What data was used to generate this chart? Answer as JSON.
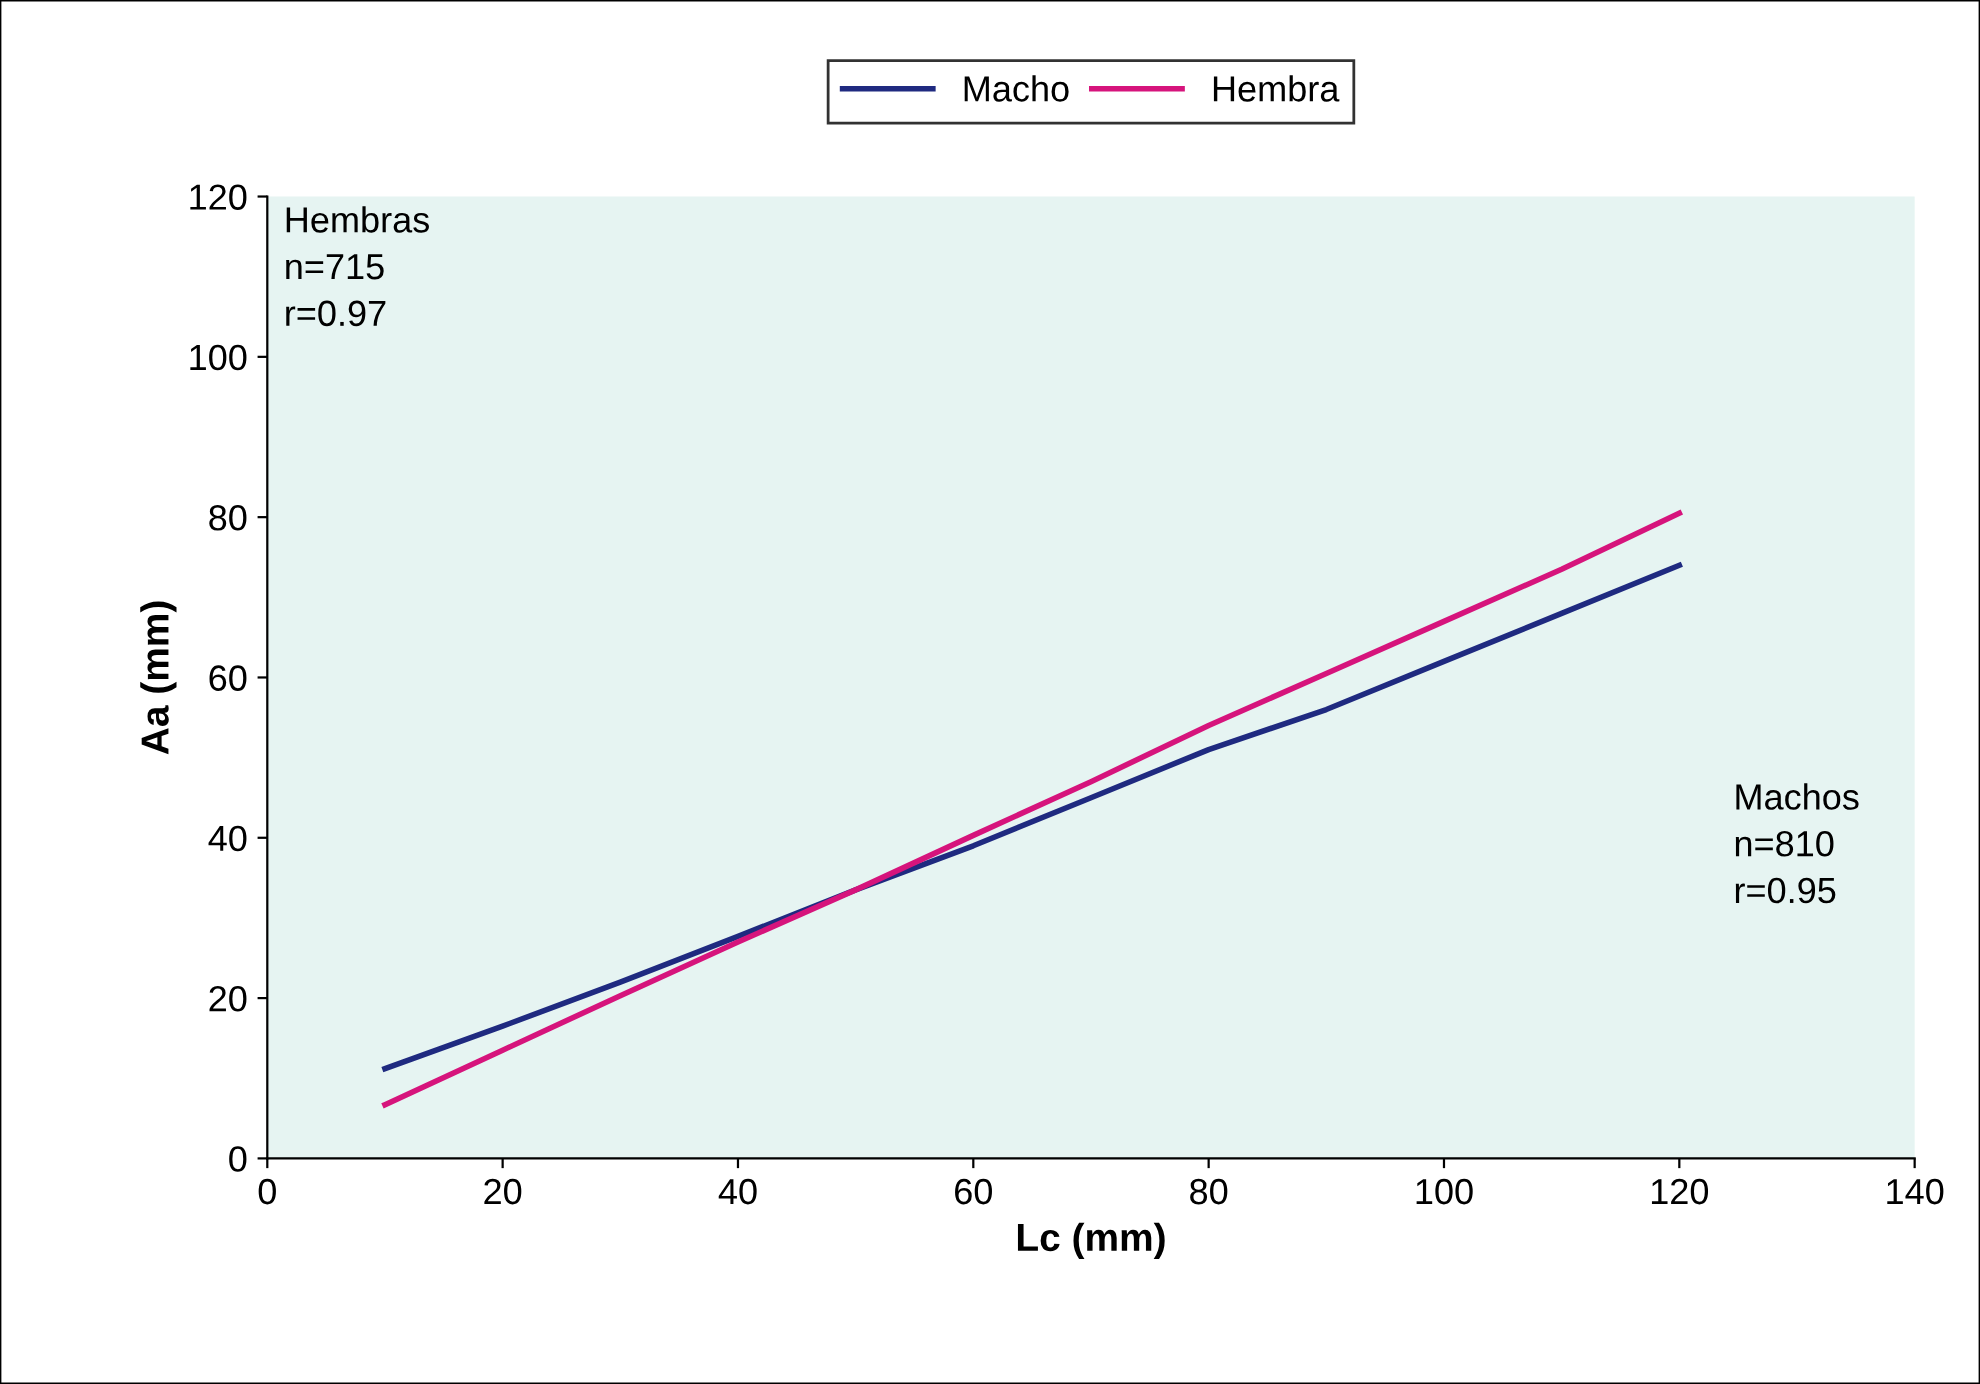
{
  "chart_data": {
    "type": "line",
    "xlabel": "Lc (mm)",
    "ylabel": "Aa (mm)",
    "xlim": [
      0,
      140
    ],
    "xticks": [
      0,
      20,
      40,
      60,
      80,
      100,
      120,
      140
    ],
    "ylim": [
      0,
      120
    ],
    "yticks": [
      0,
      20,
      40,
      60,
      80,
      100,
      120
    ],
    "x": [
      10,
      20,
      30,
      40,
      50,
      60,
      70,
      80,
      90,
      100,
      110,
      120
    ],
    "series": [
      {
        "name": "Macho",
        "color": "#1f2a80",
        "values": [
          11.2,
          16.5,
          22,
          27.7,
          33.5,
          39,
          45,
          51,
          56,
          62,
          68,
          74
        ]
      },
      {
        "name": "Hembra",
        "color": "#d6147c",
        "values": [
          6.7,
          13.5,
          20.3,
          27,
          33.5,
          40.3,
          47,
          54,
          60.5,
          67,
          73.5,
          80.5
        ]
      }
    ],
    "annotations": [
      "Hembras\nn=715\nr=0.97",
      "Machos\nn=810\nr=0.95"
    ],
    "legend": "top",
    "grid": false,
    "marker": "none",
    "line_style": "solid"
  }
}
